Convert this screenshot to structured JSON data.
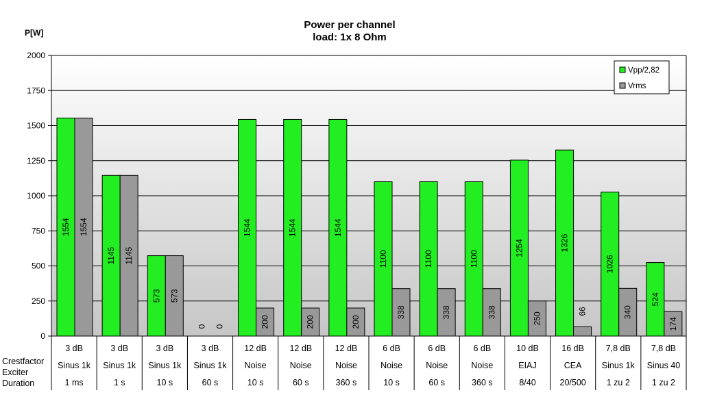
{
  "chart_data": {
    "type": "bar",
    "title": [
      "Power per channel",
      "load:  1x 8 Ohm"
    ],
    "ylabel": "P[W]",
    "ylim": [
      0,
      2000
    ],
    "yticks": [
      0,
      250,
      500,
      750,
      1000,
      1250,
      1500,
      1750,
      2000
    ],
    "grid": true,
    "legend_position": "top-right",
    "series": [
      {
        "name": "Vpp/2,82",
        "color": "#22ee22",
        "values": [
          1554,
          1145,
          573,
          0,
          1544,
          1544,
          1544,
          1100,
          1100,
          1100,
          1254,
          1326,
          1026,
          524
        ]
      },
      {
        "name": "Vrms",
        "color": "#999999",
        "values": [
          1554,
          1145,
          573,
          0,
          200,
          200,
          200,
          338,
          338,
          338,
          250,
          66,
          340,
          174
        ]
      }
    ],
    "category_rows": [
      {
        "label": "Crestfactor",
        "values": [
          "3 dB",
          "3 dB",
          "3 dB",
          "3 dB",
          "12 dB",
          "12 dB",
          "12 dB",
          "6 dB",
          "6 dB",
          "6 dB",
          "10 dB",
          "16 dB",
          "7,8 dB",
          "7,8 dB"
        ]
      },
      {
        "label": "Exciter",
        "values": [
          "Sinus 1k",
          "Sinus 1k",
          "Sinus 1k",
          "Sinus 1k",
          "Noise",
          "Noise",
          "Noise",
          "Noise",
          "Noise",
          "Noise",
          "EIAJ",
          "CEA",
          "Sinus 1k",
          "Sinus 40"
        ]
      },
      {
        "label": "Duration",
        "values": [
          "1 ms",
          "1 s",
          "10 s",
          "60 s",
          "10 s",
          "60 s",
          "360 s",
          "10 s",
          "60 s",
          "360 s",
          "8/40",
          "20/500",
          "1 zu 2",
          "1 zu 2"
        ]
      }
    ]
  }
}
